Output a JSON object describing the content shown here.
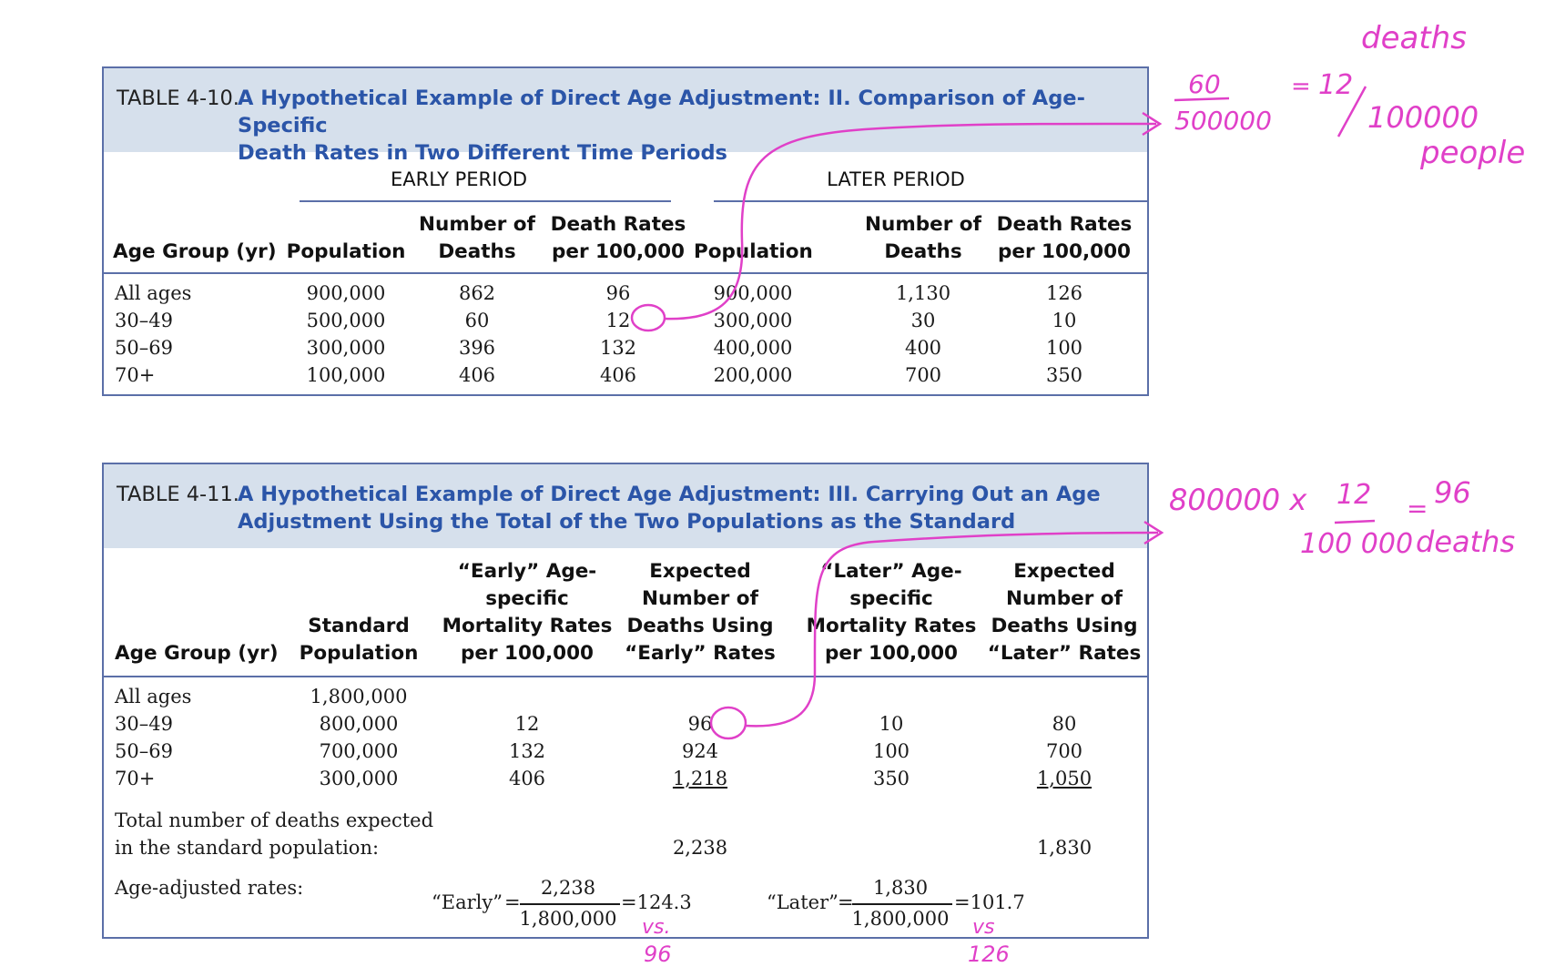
{
  "table1": {
    "number": "TABLE 4-10.",
    "title_line1": "A Hypothetical Example of Direct Age Adjustment: II. Comparison of Age-Specific",
    "title_line2": "Death Rates in Two Different Time Periods",
    "early_period": "EARLY PERIOD",
    "later_period": "LATER PERIOD",
    "col_age": "Age Group (yr)",
    "col_pop": "Population",
    "col_deaths_1": "Number of",
    "col_deaths_2": "Deaths",
    "col_rates_1": "Death Rates",
    "col_rates_2": "per 100,000",
    "rows": [
      {
        "age": "All ages",
        "e_pop": "900,000",
        "e_deaths": "862",
        "e_rate": "96",
        "l_pop": "900,000",
        "l_deaths": "1,130",
        "l_rate": "126"
      },
      {
        "age": "30–49",
        "e_pop": "500,000",
        "e_deaths": "60",
        "e_rate": "12",
        "l_pop": "300,000",
        "l_deaths": "30",
        "l_rate": "10"
      },
      {
        "age": "50–69",
        "e_pop": "300,000",
        "e_deaths": "396",
        "e_rate": "132",
        "l_pop": "400,000",
        "l_deaths": "400",
        "l_rate": "100"
      },
      {
        "age": "70+",
        "e_pop": "100,000",
        "e_deaths": "406",
        "e_rate": "406",
        "l_pop": "200,000",
        "l_deaths": "700",
        "l_rate": "350"
      }
    ]
  },
  "table2": {
    "number": "TABLE 4-11.",
    "title_line1": "A Hypothetical Example of Direct Age Adjustment: III. Carrying Out an Age",
    "title_line2": "Adjustment Using the Total of the Two Populations as the Standard",
    "col_age": "Age Group (yr)",
    "col_std": [
      "Standard",
      "Population"
    ],
    "col_early_rate": [
      "“Early” Age-",
      "specific",
      "Mortality Rates",
      "per 100,000"
    ],
    "col_early_exp": [
      "Expected",
      "Number of",
      "Deaths Using",
      "“Early” Rates"
    ],
    "col_later_rate": [
      "“Later” Age-",
      "specific",
      "Mortality Rates",
      "per 100,000"
    ],
    "col_later_exp": [
      "Expected",
      "Number of",
      "Deaths Using",
      "“Later” Rates"
    ],
    "rows": [
      {
        "age": "All ages",
        "std": "1,800,000",
        "e_rate": "",
        "e_exp": "",
        "l_rate": "",
        "l_exp": ""
      },
      {
        "age": "30–49",
        "std": "800,000",
        "e_rate": "12",
        "e_exp": "96",
        "l_rate": "10",
        "l_exp": "80"
      },
      {
        "age": "50–69",
        "std": "700,000",
        "e_rate": "132",
        "e_exp": "924",
        "l_rate": "100",
        "l_exp": "700"
      },
      {
        "age": "70+",
        "std": "300,000",
        "e_rate": "406",
        "e_exp": "1,218",
        "l_rate": "350",
        "l_exp": "1,050"
      }
    ],
    "total_label_1": "Total number of deaths expected",
    "total_label_2": "in the standard population:",
    "total_early": "2,238",
    "total_later": "1,830",
    "adjusted_label": "Age-adjusted rates:",
    "early_eq": {
      "name": "“Early”",
      "eq": "=",
      "num": "2,238",
      "den": "1,800,000",
      "result": "=124.3"
    },
    "later_eq": {
      "name": "“Later”",
      "eq": "=",
      "num": "1,830",
      "den": "1,800,000",
      "result": "=101.7"
    }
  },
  "annotations": {
    "deaths_word": "deaths",
    "frac_num": "60",
    "frac_den": "500000",
    "equals": "=",
    "rate": "12",
    "per": "100000",
    "people_word": "people",
    "calc_left": "800000 x",
    "calc_num": "12",
    "calc_den": "100 000",
    "calc_eq": "=",
    "calc_result": "96",
    "calc_unit": "deaths",
    "vs1": "vs.",
    "vs1_val": "96",
    "vs2": "vs",
    "vs2_val": "126",
    "ink_color": "#e040c8"
  }
}
